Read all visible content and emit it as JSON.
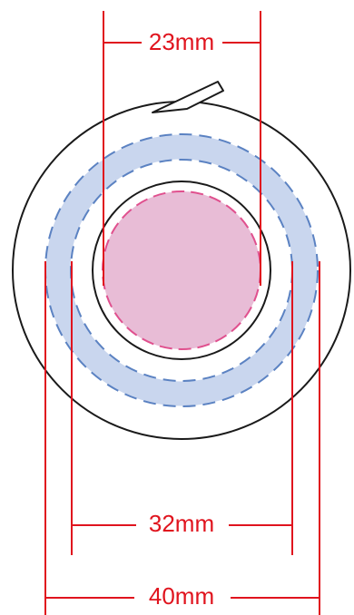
{
  "colors": {
    "dimension": "#e0141e",
    "outline": "#1a1a1a",
    "outer_band_fill": "#c9d6ee",
    "outer_band_dash": "#5b82c2",
    "inner_fill": "#e8bcd6",
    "inner_dash": "#e0508e"
  },
  "dimensions": {
    "top": "23mm",
    "middle": "32mm",
    "bottom": "40mm"
  }
}
